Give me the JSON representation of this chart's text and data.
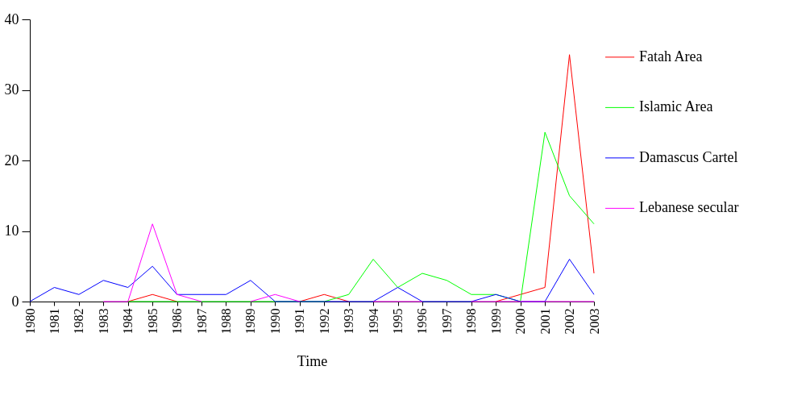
{
  "chart_data": {
    "type": "line",
    "xlabel": "Time",
    "categories": [
      "1980",
      "1981",
      "1982",
      "1983",
      "1984",
      "1985",
      "1986",
      "1987",
      "1988",
      "1989",
      "1990",
      "1991",
      "1992",
      "1993",
      "1994",
      "1995",
      "1996",
      "1997",
      "1998",
      "1999",
      "2000",
      "2001",
      "2002",
      "2003"
    ],
    "series": [
      {
        "name": "Fatah Area",
        "color": "#ff0000",
        "values": [
          null,
          null,
          null,
          null,
          0,
          1,
          0,
          null,
          null,
          null,
          null,
          0,
          1,
          0,
          null,
          null,
          null,
          null,
          null,
          0,
          1,
          2,
          35,
          4
        ]
      },
      {
        "name": "Islamic Area",
        "color": "#00ff00",
        "values": [
          null,
          null,
          null,
          null,
          0,
          0,
          0,
          0,
          0,
          0,
          0,
          0,
          0,
          1,
          6,
          2,
          4,
          3,
          1,
          1,
          0,
          24,
          15,
          11
        ]
      },
      {
        "name": "Damascus Cartel",
        "color": "#0000ff",
        "values": [
          0,
          2,
          1,
          3,
          2,
          5,
          1,
          1,
          1,
          3,
          0,
          0,
          0,
          0,
          0,
          2,
          0,
          0,
          0,
          1,
          0,
          0,
          6,
          1
        ]
      },
      {
        "name": "Lebanese secular",
        "color": "#ff00ff",
        "values": [
          null,
          null,
          null,
          0,
          0,
          11,
          1,
          0,
          null,
          0,
          1,
          0,
          null,
          null,
          0,
          0,
          0,
          null,
          0,
          0,
          0,
          0,
          0,
          0
        ]
      }
    ],
    "ylim": [
      0,
      40
    ],
    "yticks": [
      0,
      10,
      20,
      30,
      40
    ],
    "grid": false,
    "legend": "right",
    "marker": "none",
    "line_style": "solid"
  }
}
